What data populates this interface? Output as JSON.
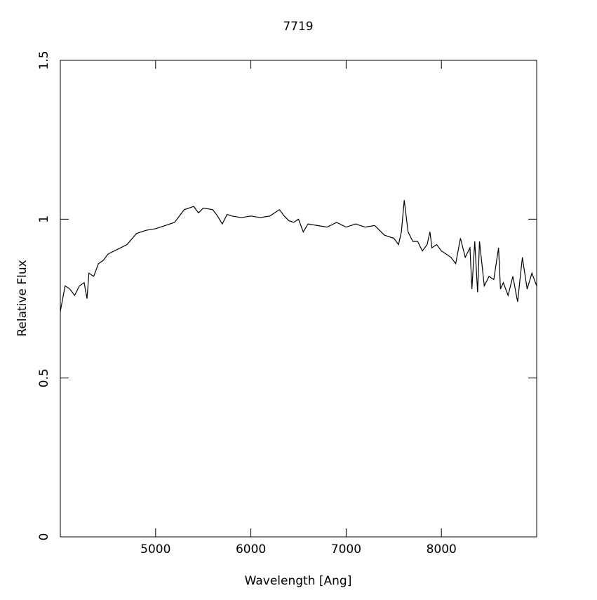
{
  "chart_data": {
    "type": "line",
    "title": "7719",
    "x_label": "Wavelength [Ang]",
    "y_label": "Relative Flux",
    "x": [
      4000,
      4050,
      4100,
      4150,
      4200,
      4250,
      4280,
      4300,
      4350,
      4400,
      4450,
      4500,
      4600,
      4700,
      4800,
      4900,
      5000,
      5100,
      5200,
      5300,
      5400,
      5450,
      5500,
      5600,
      5650,
      5700,
      5750,
      5800,
      5900,
      6000,
      6100,
      6200,
      6300,
      6350,
      6400,
      6450,
      6500,
      6550,
      6600,
      6700,
      6800,
      6900,
      7000,
      7100,
      7200,
      7300,
      7400,
      7500,
      7550,
      7580,
      7610,
      7650,
      7700,
      7750,
      7800,
      7850,
      7880,
      7900,
      7950,
      8000,
      8050,
      8100,
      8150,
      8200,
      8250,
      8300,
      8320,
      8350,
      8380,
      8400,
      8450,
      8500,
      8550,
      8600,
      8620,
      8650,
      8700,
      8750,
      8800,
      8850,
      8900,
      8950,
      9000
    ],
    "series": [
      {
        "color": "#000000",
        "values": [
          0.71,
          0.79,
          0.78,
          0.76,
          0.79,
          0.8,
          0.75,
          0.83,
          0.82,
          0.86,
          0.87,
          0.89,
          0.905,
          0.92,
          0.955,
          0.965,
          0.97,
          0.98,
          0.99,
          1.03,
          1.04,
          1.02,
          1.035,
          1.03,
          1.01,
          0.985,
          1.015,
          1.01,
          1.005,
          1.01,
          1.005,
          1.01,
          1.03,
          1.01,
          0.995,
          0.99,
          1.0,
          0.96,
          0.985,
          0.98,
          0.975,
          0.99,
          0.975,
          0.985,
          0.975,
          0.98,
          0.95,
          0.94,
          0.92,
          0.96,
          1.06,
          0.96,
          0.93,
          0.93,
          0.9,
          0.92,
          0.96,
          0.91,
          0.92,
          0.9,
          0.89,
          0.88,
          0.86,
          0.94,
          0.88,
          0.91,
          0.78,
          0.93,
          0.77,
          0.93,
          0.79,
          0.82,
          0.81,
          0.91,
          0.78,
          0.8,
          0.76,
          0.82,
          0.74,
          0.88,
          0.78,
          0.83,
          0.79
        ]
      }
    ],
    "xlim": [
      4000,
      9000
    ],
    "xticks": [
      5000,
      6000,
      7000,
      8000
    ],
    "ylim": [
      0,
      1.5
    ],
    "yticks": [
      0,
      0.5,
      1,
      1.5
    ]
  }
}
